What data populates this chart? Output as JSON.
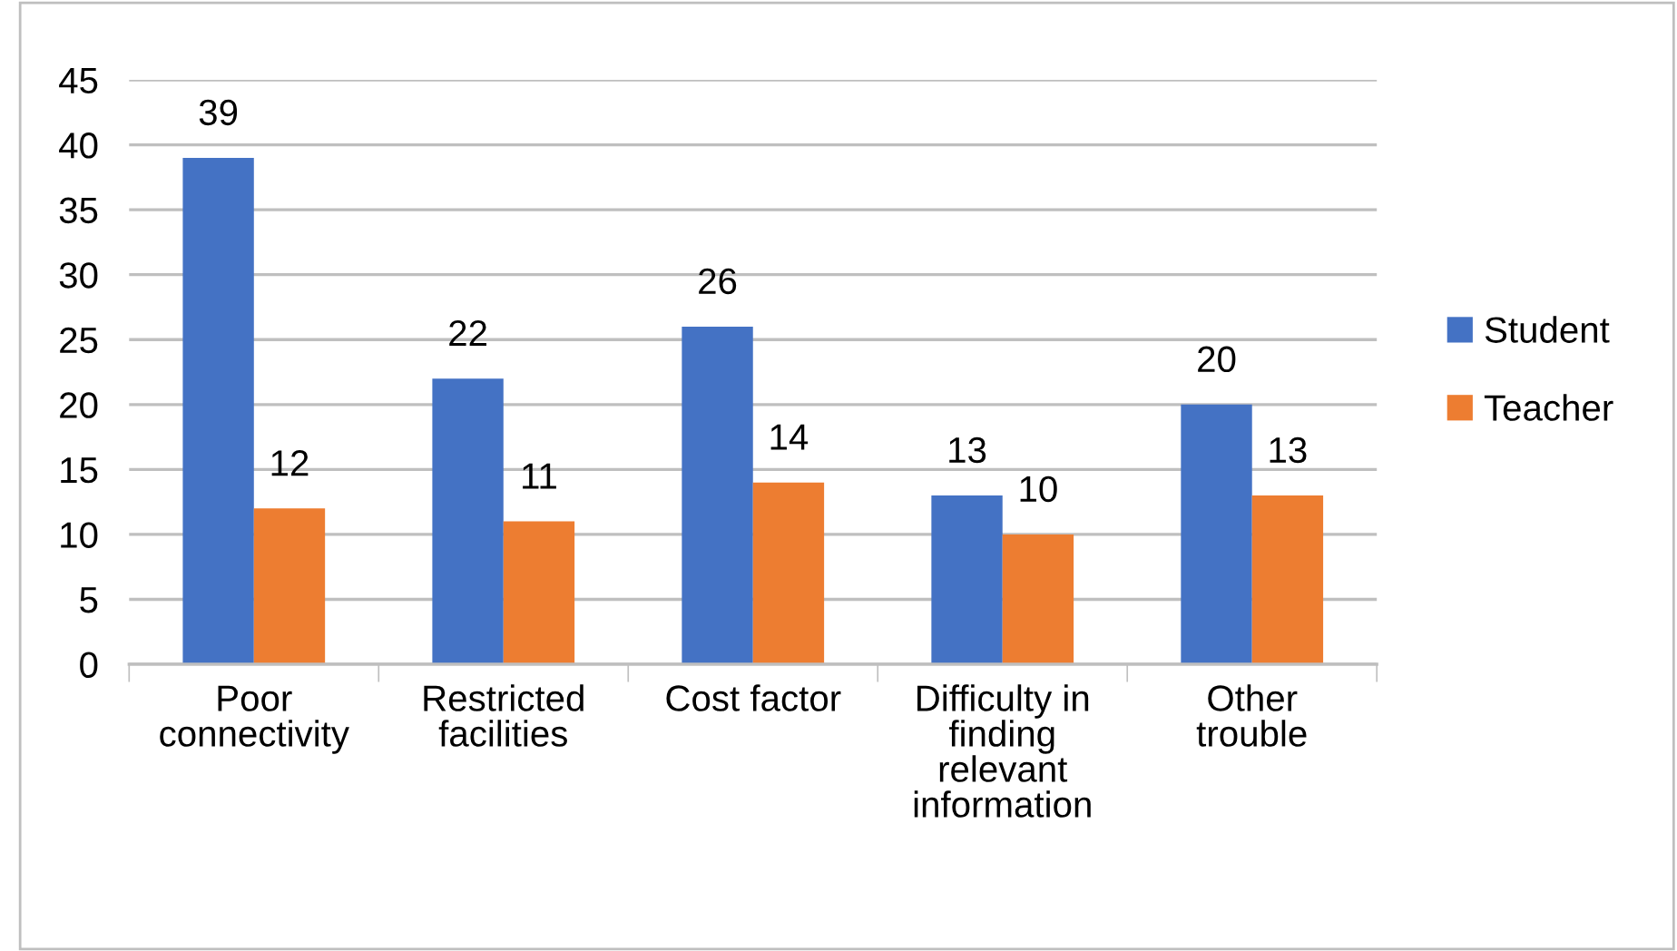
{
  "chart_data": {
    "type": "bar",
    "categories": [
      "Poor\nconnectivity",
      "Restricted\nfacilities",
      "Cost factor",
      "Difficulty in\nfinding\nrelevant\ninformation",
      "Other\ntrouble"
    ],
    "series": [
      {
        "name": "Student",
        "color": "#4472c4",
        "values": [
          39,
          22,
          26,
          13,
          20
        ]
      },
      {
        "name": "Teacher",
        "color": "#ed7d31",
        "values": [
          12,
          11,
          14,
          10,
          13
        ]
      }
    ],
    "ylim": [
      0,
      45
    ],
    "yticks": [
      0,
      5,
      10,
      15,
      20,
      25,
      30,
      35,
      40,
      45
    ],
    "grid": "y",
    "legend": "right",
    "data_labels": true
  }
}
